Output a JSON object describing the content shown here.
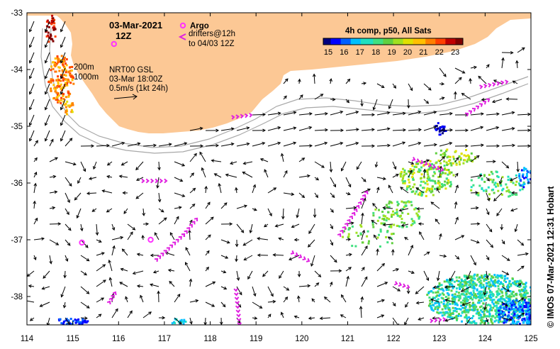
{
  "map": {
    "title_date": "03-Mar-2021",
    "title_time": "12Z",
    "argo_label": "Argo",
    "drifters_label_1": "drifters@12h",
    "drifters_label_2": "to 04/03 12Z",
    "isobath_200": "200m",
    "isobath_1000": "1000m",
    "product_1": "NRT00 GSL",
    "product_2": "03-Mar 18:00Z",
    "scale_label": "0.5m/s (1kt 24h)",
    "colorbar_title": "4h comp, p50, All Sats",
    "colorbar_ticks": [
      "15",
      "16",
      "17",
      "18",
      "19",
      "20",
      "21",
      "22",
      "23"
    ],
    "credit": "© IMOS 07-Mar-2021 12:31 Hobart",
    "x_ticks": [
      "114",
      "115",
      "116",
      "117",
      "118",
      "119",
      "120",
      "121",
      "122",
      "123",
      "124",
      "125"
    ],
    "y_ticks": [
      "-33",
      "-34",
      "-35",
      "-36",
      "-37",
      "-38"
    ],
    "colors": {
      "land": "#fcc895",
      "argo": "#ff33ff",
      "drifter": "#e020e0",
      "isobath": "#a8a8a8"
    }
  },
  "chart_data": {
    "type": "map",
    "xlim": [
      114,
      125
    ],
    "ylim": [
      -38.5,
      -33
    ],
    "argo_floats": [
      {
        "lon": 115.2,
        "lat": -37.05
      },
      {
        "lon": 116.7,
        "lat": -37.0
      },
      {
        "lon": 115.9,
        "lat": -33.55
      }
    ]
  }
}
